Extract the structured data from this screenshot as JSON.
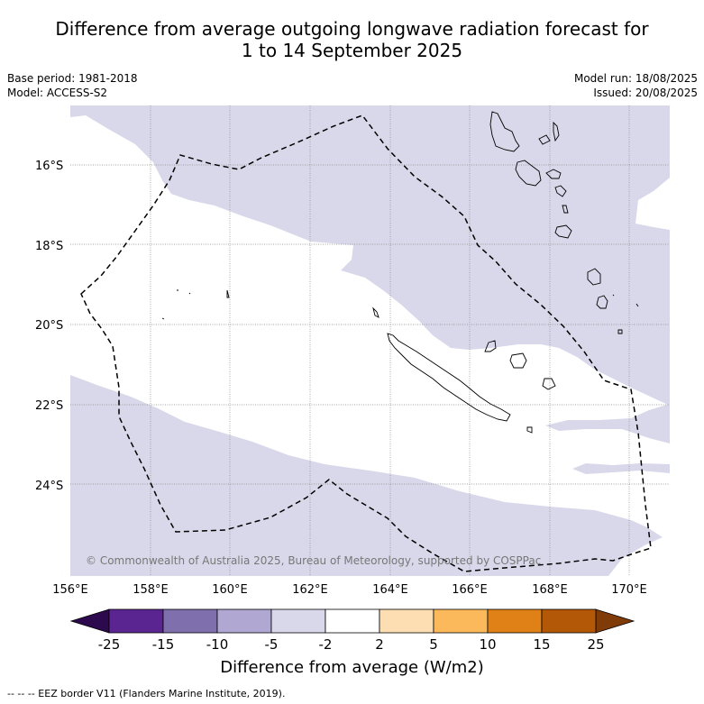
{
  "title_line1": "Difference from average outgoing longwave radiation forecast for",
  "title_line2": "1 to 14 September 2025",
  "left_meta": {
    "base_period": "Base period: 1981-2018",
    "model": "Model: ACCESS-S2"
  },
  "right_meta": {
    "model_run": "Model run: 18/08/2025",
    "issued": "Issued: 20/08/2025"
  },
  "map": {
    "lat_labels": [
      "16°S",
      "18°S",
      "20°S",
      "22°S",
      "24°S"
    ],
    "lon_labels": [
      "156°E",
      "158°E",
      "160°E",
      "162°E",
      "164°E",
      "166°E",
      "168°E",
      "170°E"
    ],
    "copyright": "© Commonwealth of Australia 2025, Bureau of Meteorology, supported by COSPPac",
    "fill_color_negative": "#d8d8ea",
    "coastline_color": "#000000"
  },
  "colorbar": {
    "labels": [
      "-25",
      "-15",
      "-10",
      "-5",
      "-2",
      "2",
      "5",
      "10",
      "15",
      "25"
    ],
    "colors": [
      "#5a2590",
      "#7f70ad",
      "#b0a8d3",
      "#d8d8ea",
      "#ffffff",
      "#fddeb2",
      "#fcb95c",
      "#e08118",
      "#b35807"
    ],
    "extend_low": "#2d0a4e",
    "extend_high": "#7f3b08",
    "title": "Difference from average (W/m2)"
  },
  "footer": "--  --  -- EEZ border V11 (Flanders Marine Institute, 2019)."
}
